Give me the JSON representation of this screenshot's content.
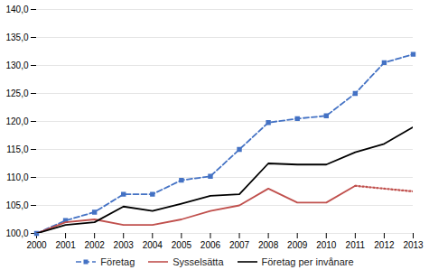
{
  "chart_data": {
    "type": "line",
    "x": [
      2000,
      2001,
      2002,
      2003,
      2004,
      2005,
      2006,
      2007,
      2008,
      2009,
      2010,
      2011,
      2012,
      2013
    ],
    "series": [
      {
        "name": "Företag",
        "color": "#4472C4",
        "line_style": "dashed",
        "marker": "square",
        "values": [
          100.0,
          102.3,
          103.8,
          107.0,
          107.0,
          109.5,
          110.2,
          115.0,
          119.8,
          120.5,
          121.0,
          125.0,
          130.5,
          132.0
        ]
      },
      {
        "name": "Sysselsätta",
        "color": "#C0504D",
        "line_style": "solid",
        "values": [
          100.0,
          102.0,
          102.5,
          101.5,
          101.5,
          102.5,
          104.0,
          105.0,
          108.0,
          105.5,
          105.5,
          108.5,
          null,
          null
        ]
      },
      {
        "name": "Sysselsätta",
        "color": "#C0504D",
        "line_style": "dotted",
        "values": [
          null,
          null,
          null,
          null,
          null,
          null,
          null,
          null,
          null,
          null,
          null,
          108.5,
          108.0,
          107.5
        ]
      },
      {
        "name": "Företag per invånare",
        "color": "#000000",
        "line_style": "solid",
        "values": [
          100.0,
          101.5,
          102.0,
          104.8,
          104.0,
          105.3,
          106.7,
          107.0,
          112.5,
          112.3,
          112.3,
          114.5,
          116.0,
          119.0
        ]
      }
    ],
    "xlim": [
      2000,
      2013
    ],
    "xticks": [
      2000,
      2001,
      2002,
      2003,
      2004,
      2005,
      2006,
      2007,
      2008,
      2009,
      2010,
      2011,
      2012,
      2013
    ],
    "ylim": [
      100.0,
      140.0
    ],
    "yticks": [
      {
        "value": 100.0,
        "label": "100,0"
      },
      {
        "value": 105.0,
        "label": "105,0"
      },
      {
        "value": 110.0,
        "label": "110,0"
      },
      {
        "value": 115.0,
        "label": "115,0"
      },
      {
        "value": 120.0,
        "label": "120,0"
      },
      {
        "value": 125.0,
        "label": "125,0"
      },
      {
        "value": 130.0,
        "label": "130,0"
      },
      {
        "value": 135.0,
        "label": "135,0"
      },
      {
        "value": 140.0,
        "label": "140,0"
      }
    ],
    "grid": true,
    "legend": "bottom"
  }
}
